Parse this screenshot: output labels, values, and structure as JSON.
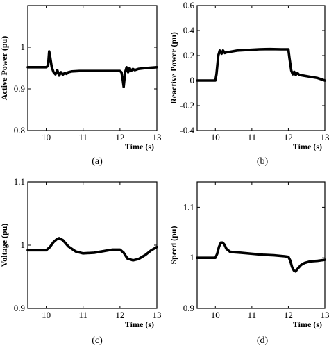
{
  "chart_data": [
    {
      "id": "a",
      "type": "line",
      "caption": "(a)",
      "xlabel": "Time (s)",
      "ylabel": "Active Power (pu)",
      "xlim": [
        9.5,
        13
      ],
      "ylim": [
        0.8,
        1.1
      ],
      "xticks": [
        10,
        11,
        12,
        13
      ],
      "yticks": [
        0.8,
        0.9,
        1
      ],
      "series": [
        {
          "x": [
            9.5,
            10.0,
            10.05,
            10.08,
            10.11,
            10.15,
            10.2,
            10.25,
            10.3,
            10.35,
            10.4,
            10.45,
            10.5,
            10.55,
            10.6,
            10.7,
            10.9,
            11.5,
            12.0,
            12.04,
            12.07,
            12.1,
            12.14,
            12.18,
            12.22,
            12.26,
            12.3,
            12.35,
            12.4,
            12.5,
            12.7,
            13.0
          ],
          "y": [
            0.952,
            0.952,
            0.955,
            0.99,
            0.975,
            0.952,
            0.94,
            0.935,
            0.945,
            0.932,
            0.94,
            0.934,
            0.938,
            0.936,
            0.94,
            0.942,
            0.943,
            0.943,
            0.943,
            0.94,
            0.925,
            0.905,
            0.94,
            0.952,
            0.94,
            0.95,
            0.943,
            0.948,
            0.945,
            0.948,
            0.95,
            0.952
          ]
        }
      ]
    },
    {
      "id": "b",
      "type": "line",
      "caption": "(b)",
      "xlabel": "Time (s)",
      "ylabel": "Reactive Power (pu)",
      "xlim": [
        9.5,
        13
      ],
      "ylim": [
        -0.4,
        0.6
      ],
      "xticks": [
        10,
        11,
        12,
        13
      ],
      "yticks": [
        -0.4,
        -0.2,
        0,
        0.2,
        0.4,
        0.6
      ],
      "series": [
        {
          "x": [
            9.5,
            10.0,
            10.03,
            10.08,
            10.12,
            10.17,
            10.21,
            10.26,
            10.3,
            10.4,
            10.6,
            10.9,
            11.2,
            11.5,
            11.8,
            12.0,
            12.03,
            12.08,
            12.12,
            12.16,
            12.2,
            12.25,
            12.3,
            12.4,
            12.6,
            12.8,
            13.0
          ],
          "y": [
            0.0,
            0.0,
            0.05,
            0.2,
            0.24,
            0.215,
            0.24,
            0.22,
            0.225,
            0.23,
            0.24,
            0.245,
            0.25,
            0.252,
            0.25,
            0.25,
            0.18,
            0.08,
            0.05,
            0.07,
            0.045,
            0.06,
            0.045,
            0.04,
            0.03,
            0.02,
            0.0
          ]
        }
      ]
    },
    {
      "id": "c",
      "type": "line",
      "caption": "(c)",
      "xlabel": "Time (s)",
      "ylabel": "Voltage (pu)",
      "xlim": [
        9.5,
        13
      ],
      "ylim": [
        0.9,
        1.1
      ],
      "xticks": [
        10,
        11,
        12,
        13
      ],
      "yticks": [
        0.9,
        1,
        1.1
      ],
      "series": [
        {
          "x": [
            9.5,
            10.0,
            10.1,
            10.2,
            10.3,
            10.35,
            10.45,
            10.6,
            10.8,
            11.0,
            11.3,
            11.6,
            11.8,
            12.0,
            12.1,
            12.2,
            12.35,
            12.5,
            12.7,
            12.85,
            13.0
          ],
          "y": [
            0.992,
            0.992,
            0.997,
            1.005,
            1.01,
            1.011,
            1.008,
            0.998,
            0.99,
            0.987,
            0.988,
            0.991,
            0.993,
            0.993,
            0.988,
            0.979,
            0.976,
            0.978,
            0.985,
            0.992,
            0.997
          ]
        }
      ]
    },
    {
      "id": "d",
      "type": "line",
      "caption": "(d)",
      "xlabel": "Time (s)",
      "ylabel": "Speed (pu)",
      "xlim": [
        9.5,
        13
      ],
      "ylim": [
        0.9,
        1.15
      ],
      "xticks": [
        10,
        11,
        12,
        13
      ],
      "yticks": [
        0.9,
        1,
        1.1
      ],
      "series": [
        {
          "x": [
            9.5,
            10.0,
            10.05,
            10.1,
            10.15,
            10.2,
            10.25,
            10.3,
            10.4,
            10.5,
            10.7,
            11.0,
            11.3,
            11.6,
            11.9,
            12.0,
            12.05,
            12.1,
            12.15,
            12.2,
            12.25,
            12.35,
            12.45,
            12.6,
            12.8,
            13.0
          ],
          "y": [
            1.0,
            1.0,
            1.008,
            1.022,
            1.03,
            1.03,
            1.026,
            1.018,
            1.012,
            1.011,
            1.01,
            1.008,
            1.006,
            1.005,
            1.003,
            1.002,
            0.995,
            0.982,
            0.975,
            0.973,
            0.978,
            0.986,
            0.99,
            0.993,
            0.994,
            0.996
          ]
        }
      ]
    }
  ]
}
